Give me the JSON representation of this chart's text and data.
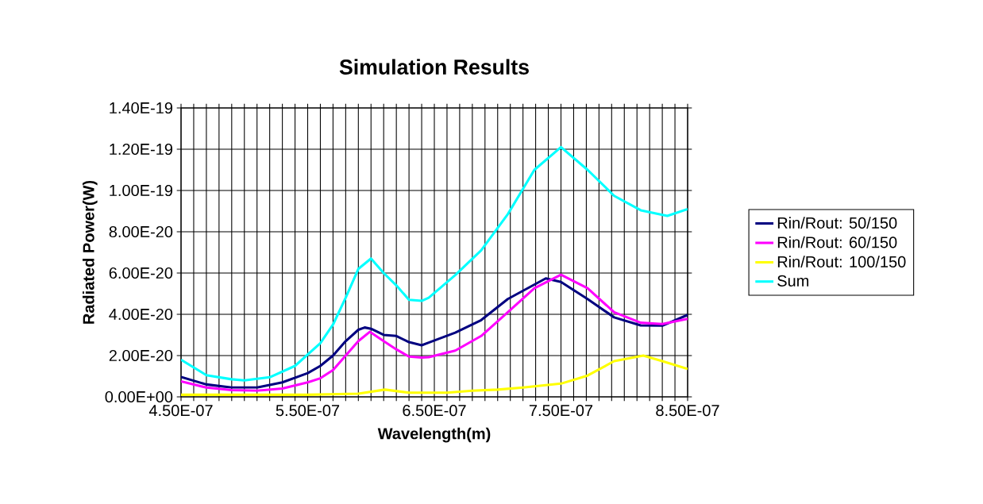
{
  "chart_data": {
    "type": "line",
    "title": "Simulation Results",
    "xlabel": "Wavelength(m)",
    "ylabel": "Radiated Power(W)",
    "xlim": [
      4.5e-07,
      8.5e-07
    ],
    "ylim": [
      0,
      1.4e-19
    ],
    "xticks": [
      {
        "value": 4.5e-07,
        "label": "4.50E-07"
      },
      {
        "value": 4.6e-07,
        "label": null
      },
      {
        "value": 4.7e-07,
        "label": null
      },
      {
        "value": 4.8e-07,
        "label": null
      },
      {
        "value": 4.9e-07,
        "label": null
      },
      {
        "value": 5e-07,
        "label": null
      },
      {
        "value": 5.1e-07,
        "label": null
      },
      {
        "value": 5.2e-07,
        "label": null
      },
      {
        "value": 5.3e-07,
        "label": null
      },
      {
        "value": 5.4e-07,
        "label": null
      },
      {
        "value": 5.5e-07,
        "label": "5.50E-07"
      },
      {
        "value": 5.6e-07,
        "label": null
      },
      {
        "value": 5.7e-07,
        "label": null
      },
      {
        "value": 5.8e-07,
        "label": null
      },
      {
        "value": 5.9e-07,
        "label": null
      },
      {
        "value": 6e-07,
        "label": null
      },
      {
        "value": 6.1e-07,
        "label": null
      },
      {
        "value": 6.2e-07,
        "label": null
      },
      {
        "value": 6.3e-07,
        "label": null
      },
      {
        "value": 6.4e-07,
        "label": null
      },
      {
        "value": 6.5e-07,
        "label": "6.50E-07"
      },
      {
        "value": 6.6e-07,
        "label": null
      },
      {
        "value": 6.7e-07,
        "label": null
      },
      {
        "value": 6.8e-07,
        "label": null
      },
      {
        "value": 6.9e-07,
        "label": null
      },
      {
        "value": 7e-07,
        "label": null
      },
      {
        "value": 7.1e-07,
        "label": null
      },
      {
        "value": 7.2e-07,
        "label": null
      },
      {
        "value": 7.3e-07,
        "label": null
      },
      {
        "value": 7.4e-07,
        "label": null
      },
      {
        "value": 7.5e-07,
        "label": "7.50E-07"
      },
      {
        "value": 7.6e-07,
        "label": null
      },
      {
        "value": 7.7e-07,
        "label": null
      },
      {
        "value": 7.8e-07,
        "label": null
      },
      {
        "value": 7.9e-07,
        "label": null
      },
      {
        "value": 8e-07,
        "label": null
      },
      {
        "value": 8.1e-07,
        "label": null
      },
      {
        "value": 8.2e-07,
        "label": null
      },
      {
        "value": 8.3e-07,
        "label": null
      },
      {
        "value": 8.4e-07,
        "label": null
      },
      {
        "value": 8.5e-07,
        "label": "8.50E-07"
      }
    ],
    "yticks": [
      {
        "value": 0,
        "label": "0.00E+00"
      },
      {
        "value": 2e-20,
        "label": "2.00E-20"
      },
      {
        "value": 4e-20,
        "label": "4.00E-20"
      },
      {
        "value": 6e-20,
        "label": "6.00E-20"
      },
      {
        "value": 8e-20,
        "label": "8.00E-20"
      },
      {
        "value": 1e-19,
        "label": "1.00E-19"
      },
      {
        "value": 1.2e-19,
        "label": "1.20E-19"
      },
      {
        "value": 1.4e-19,
        "label": "1.40E-19"
      }
    ],
    "grid": true,
    "legend": "right",
    "marker": "none",
    "line_style": "solid",
    "series": [
      {
        "name": "Rin/Rout: 50/150",
        "color": "#000080",
        "x": [
          4.5e-07,
          4.7e-07,
          4.9e-07,
          5.1e-07,
          5.3e-07,
          5.5e-07,
          5.6e-07,
          5.7e-07,
          5.8e-07,
          5.9e-07,
          5.95e-07,
          6e-07,
          6.1e-07,
          6.2e-07,
          6.3e-07,
          6.4e-07,
          6.456e-07,
          6.665e-07,
          6.87e-07,
          7.08e-07,
          7.38e-07,
          7.5e-07,
          7.71e-07,
          7.92e-07,
          8.13e-07,
          8.3e-07,
          8.5e-07
        ],
        "values": [
          9.6e-21,
          6e-21,
          4.5e-21,
          4.5e-21,
          7e-21,
          1.15e-20,
          1.5e-20,
          2e-20,
          2.7e-20,
          3.25e-20,
          3.36e-20,
          3.3e-20,
          3e-20,
          2.95e-20,
          2.65e-20,
          2.5e-20,
          2.63e-20,
          3.11e-20,
          3.72e-20,
          4.74e-20,
          5.74e-20,
          5.57e-20,
          4.74e-20,
          3.85e-20,
          3.46e-20,
          3.45e-20,
          3.97e-20
        ]
      },
      {
        "name": "Rin/Rout: 60/150",
        "color": "#ff00ff",
        "x": [
          4.5e-07,
          4.7e-07,
          4.9e-07,
          5.1e-07,
          5.3e-07,
          5.5e-07,
          5.6e-07,
          5.7e-07,
          5.8e-07,
          5.9e-07,
          5.99e-07,
          6.1e-07,
          6.2e-07,
          6.3e-07,
          6.4e-07,
          6.456e-07,
          6.665e-07,
          6.87e-07,
          7.08e-07,
          7.29e-07,
          7.5e-07,
          7.71e-07,
          7.92e-07,
          8.13e-07,
          8.3e-07,
          8.5e-07
        ],
        "values": [
          7.5e-21,
          4.5e-21,
          3.3e-21,
          3e-21,
          4e-21,
          7e-21,
          9e-21,
          1.3e-20,
          2e-20,
          2.7e-20,
          3.15e-20,
          2.7e-20,
          2.3e-20,
          1.95e-20,
          1.9e-20,
          1.92e-20,
          2.24e-20,
          2.95e-20,
          4.1e-20,
          5.26e-20,
          5.92e-20,
          5.26e-20,
          4.1e-20,
          3.59e-20,
          3.53e-20,
          3.78e-20
        ]
      },
      {
        "name": "Rin/Rout: 100/150",
        "color": "#ffff00",
        "x": [
          4.5e-07,
          5.5e-07,
          5.9e-07,
          6.11e-07,
          6.3e-07,
          6.6e-07,
          6.8e-07,
          7e-07,
          7.2e-07,
          7.5e-07,
          7.71e-07,
          7.92e-07,
          8.15e-07,
          8.3e-07,
          8.5e-07
        ],
        "values": [
          1e-21,
          1e-21,
          1.5e-21,
          3.5e-21,
          2e-21,
          2e-21,
          3e-21,
          3.5e-21,
          4.5e-21,
          6.4e-21,
          1.03e-20,
          1.73e-20,
          2e-20,
          1.73e-20,
          1.35e-20
        ]
      },
      {
        "name": "Sum",
        "color": "#00ffff",
        "x": [
          4.5e-07,
          4.7e-07,
          4.9e-07,
          5e-07,
          5.2e-07,
          5.4e-07,
          5.6e-07,
          5.7e-07,
          5.8e-07,
          5.9e-07,
          6e-07,
          6.1e-07,
          6.2e-07,
          6.3e-07,
          6.4e-07,
          6.456e-07,
          6.665e-07,
          6.87e-07,
          7.08e-07,
          7.29e-07,
          7.5e-07,
          7.71e-07,
          7.92e-07,
          8.13e-07,
          8.34e-07,
          8.5e-07
        ],
        "values": [
          1.8e-20,
          1.05e-20,
          8.5e-21,
          8e-21,
          9.5e-21,
          1.5e-20,
          2.6e-20,
          3.5e-20,
          4.8e-20,
          6.2e-20,
          6.7e-20,
          6e-20,
          5.4e-20,
          4.7e-20,
          4.65e-20,
          4.8e-20,
          5.9e-20,
          7.1e-20,
          8.85e-20,
          1.1e-19,
          1.21e-19,
          1.1e-19,
          9.74e-20,
          9.04e-20,
          8.77e-20,
          9.1e-20
        ]
      }
    ]
  }
}
